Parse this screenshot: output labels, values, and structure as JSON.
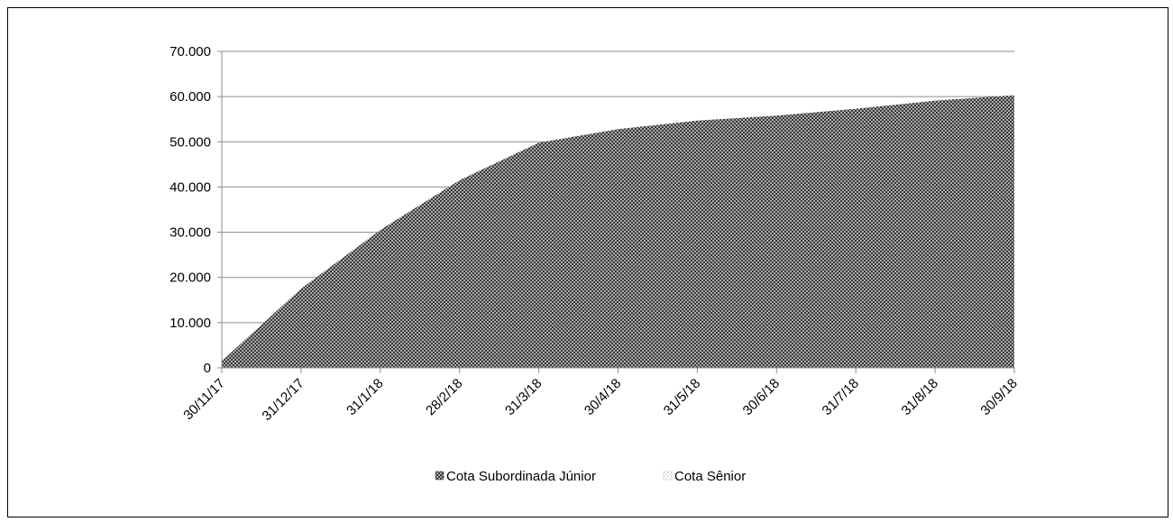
{
  "chart_data": {
    "type": "area",
    "title": "",
    "xlabel": "",
    "ylabel": "",
    "categories": [
      "30/11/17",
      "31/12/17",
      "31/1/18",
      "28/2/18",
      "31/3/18",
      "30/4/18",
      "31/5/18",
      "30/6/18",
      "31/7/18",
      "31/8/18",
      "30/9/18"
    ],
    "ylim": [
      0,
      70000
    ],
    "yticks": [
      0,
      10000,
      20000,
      30000,
      40000,
      50000,
      60000,
      70000
    ],
    "ytick_labels": [
      "0",
      "10.000",
      "20.000",
      "30.000",
      "40.000",
      "50.000",
      "60.000",
      "70.000"
    ],
    "grid": true,
    "legend_position": "bottom",
    "series": [
      {
        "name": "Cota Subordinada Júnior",
        "values": [
          1500,
          17500,
          30500,
          41500,
          49800,
          52800,
          54700,
          55800,
          57300,
          59100,
          60300
        ],
        "color": "#5f5f5f",
        "pattern": "dense-dots"
      },
      {
        "name": "Cota Sênior",
        "values": [
          0,
          0,
          0,
          0,
          0,
          0,
          0,
          0,
          0,
          0,
          0
        ],
        "color": "#d9d9d9",
        "pattern": "sparse-dots"
      }
    ]
  }
}
